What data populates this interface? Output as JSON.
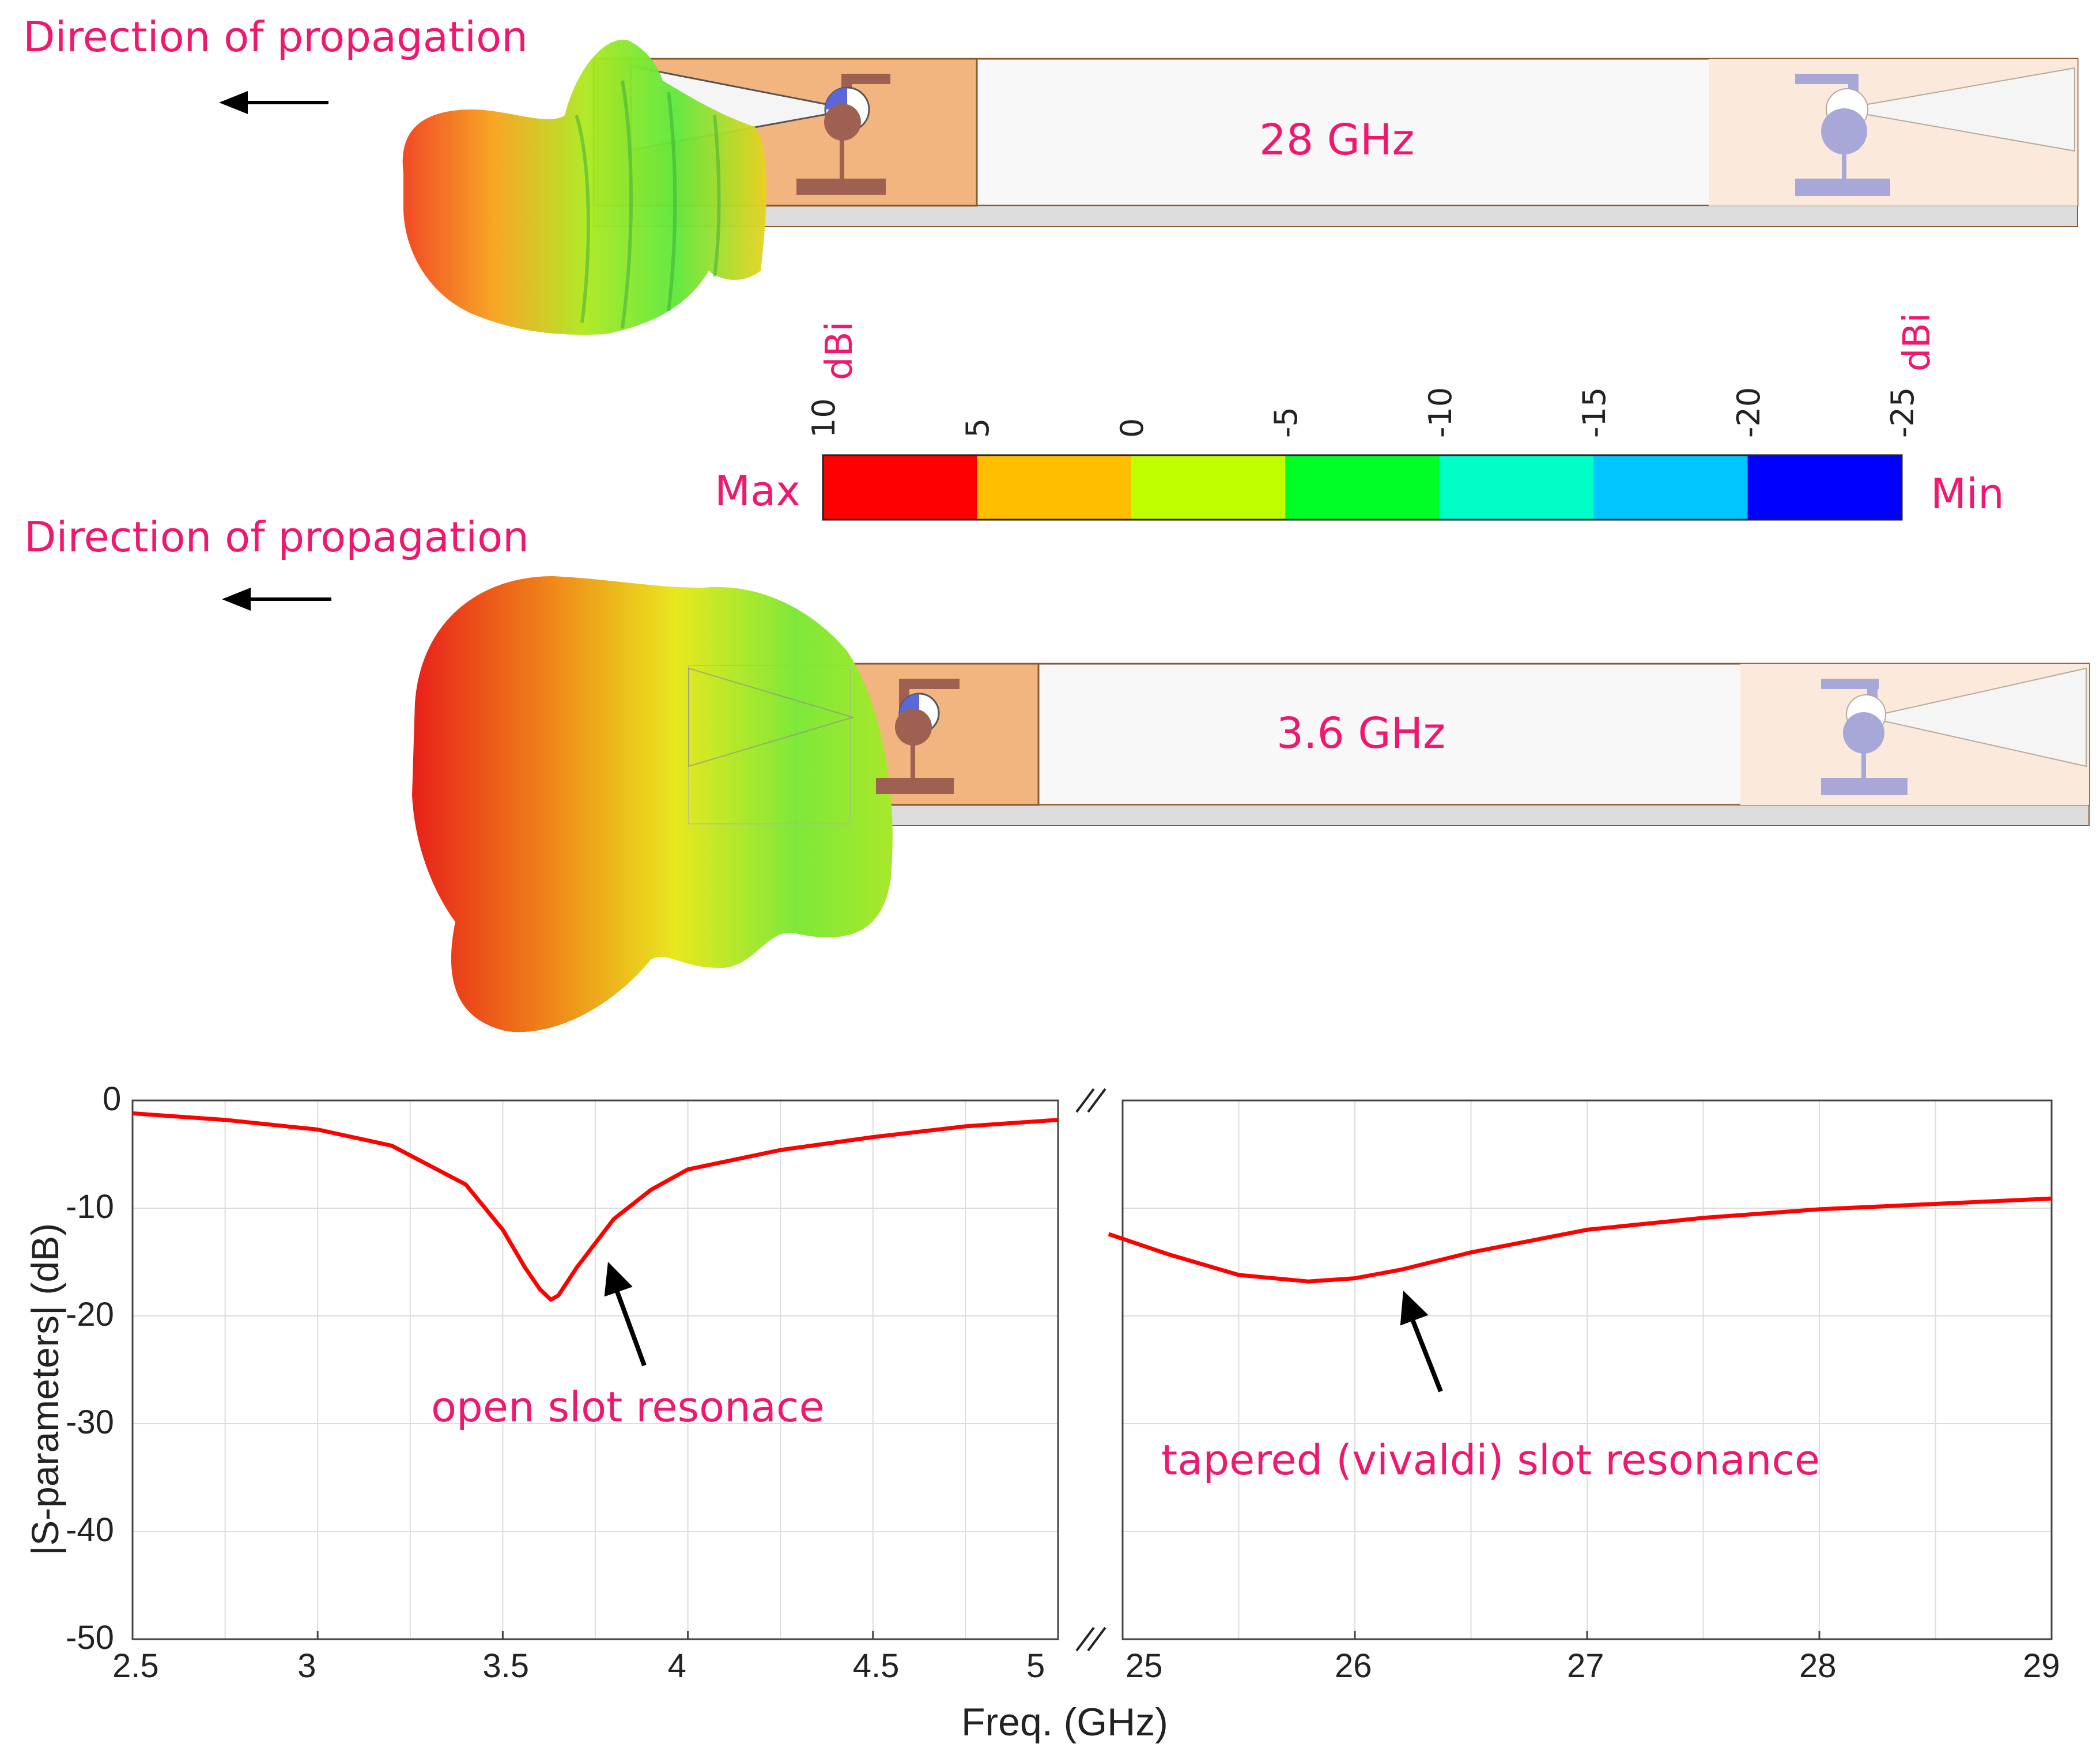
{
  "figure": {
    "top_panel": {
      "direction_label": "Direction of propagation",
      "frequency_label": "28 GHz"
    },
    "middle_panel": {
      "direction_label": "Direction of propagation",
      "frequency_label": "3.6 GHz"
    },
    "colorbar": {
      "max_label": "Max",
      "min_label": "Min",
      "unit_left": "dBi",
      "unit_right": "dBi",
      "ticks": [
        "10",
        "5",
        "0",
        "-5",
        "-10",
        "-15",
        "-20",
        "-25"
      ],
      "colors": [
        "#ff0000",
        "#ffbf00",
        "#bfff00",
        "#00ff26",
        "#00ffc6",
        "#00c6ff",
        "#0000ff"
      ]
    }
  },
  "chart_data": {
    "type": "line",
    "xlabel": "Freq. (GHz)",
    "ylabel": "|S-parameters| (dB)",
    "ylim": [
      -50,
      0
    ],
    "yticks": [
      0,
      -10,
      -20,
      -30,
      -40,
      -50
    ],
    "grid": true,
    "broken_x_axis": true,
    "segments": [
      {
        "xlim": [
          2.5,
          5
        ],
        "xticks": [
          2.5,
          3,
          3.5,
          4,
          4.5,
          5
        ],
        "x": [
          2.5,
          2.75,
          3.0,
          3.2,
          3.4,
          3.5,
          3.56,
          3.6,
          3.63,
          3.65,
          3.7,
          3.8,
          3.9,
          4.0,
          4.25,
          4.5,
          4.75,
          5.0
        ],
        "y": [
          -1.2,
          -1.8,
          -2.7,
          -4.2,
          -7.8,
          -12.0,
          -15.5,
          -17.5,
          -18.5,
          -18.1,
          -15.5,
          -11.0,
          -8.3,
          -6.4,
          -4.6,
          -3.4,
          -2.4,
          -1.8
        ]
      },
      {
        "xlim": [
          25,
          29
        ],
        "xticks": [
          25,
          26,
          27,
          28,
          29
        ],
        "x": [
          24.94,
          25.2,
          25.5,
          25.8,
          26.0,
          26.2,
          26.5,
          27.0,
          27.5,
          28.0,
          28.5,
          29.0
        ],
        "y": [
          -12.4,
          -14.3,
          -16.2,
          -16.8,
          -16.5,
          -15.7,
          -14.1,
          -12.0,
          -10.9,
          -10.1,
          -9.6,
          -9.1
        ]
      }
    ],
    "series_color": "#ff0000",
    "annotations": [
      {
        "text": "open slot resonace",
        "x": 3.63,
        "y": -18.5
      },
      {
        "text": "tapered (vivaldi) slot resonance",
        "x": 26.2,
        "y": -17.0
      }
    ]
  }
}
